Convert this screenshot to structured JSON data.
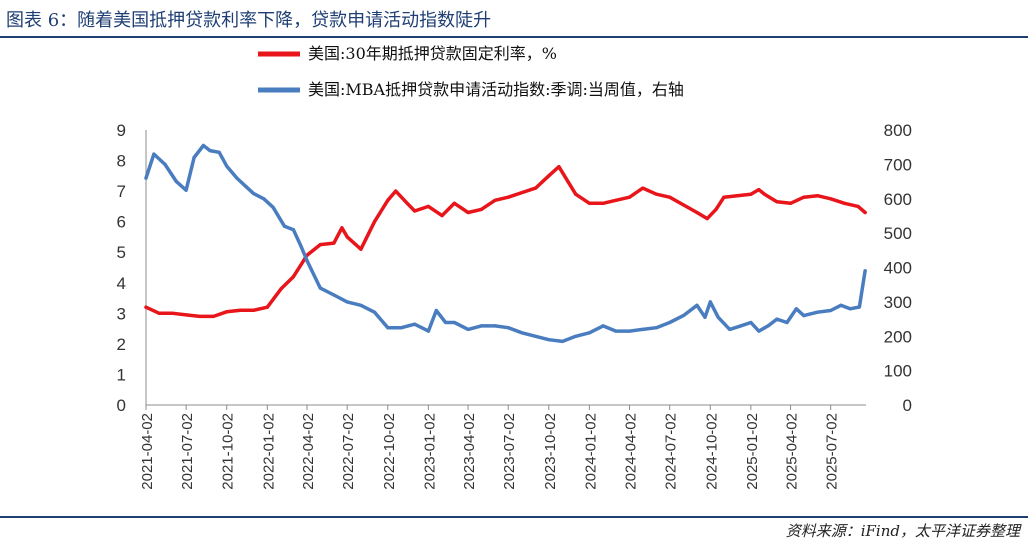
{
  "figure_title": "图表 6：随着美国抵押贷款利率下降，贷款申请活动指数陡升",
  "source_note": "资料来源：iFind，太平洋证券整理",
  "chart_data": {
    "type": "line",
    "title": "",
    "x_tick_labels": [
      "2021-04-02",
      "2021-07-02",
      "2021-10-02",
      "2022-01-02",
      "2022-04-02",
      "2022-07-02",
      "2022-10-02",
      "2023-01-02",
      "2023-04-02",
      "2023-07-02",
      "2023-10-02",
      "2024-01-02",
      "2024-04-02",
      "2024-07-02",
      "2024-10-02",
      "2025-01-02",
      "2025-04-02",
      "2025-07-02"
    ],
    "left_axis": {
      "ylim": [
        0,
        9
      ],
      "ticks": [
        "0",
        "1",
        "2",
        "3",
        "4",
        "5",
        "6",
        "7",
        "8",
        "9"
      ]
    },
    "right_axis": {
      "ylim": [
        0,
        800
      ],
      "ticks": [
        "0",
        "100",
        "200",
        "300",
        "400",
        "500",
        "600",
        "700",
        "800"
      ]
    },
    "grid": false,
    "legend_position": "top",
    "series": [
      {
        "name": "美国:30年期抵押贷款固定利率，%",
        "axis": "left",
        "color": "#e8151b",
        "x": [
          "2021-04-02",
          "2021-05-02",
          "2021-06-02",
          "2021-07-02",
          "2021-08-02",
          "2021-09-02",
          "2021-10-02",
          "2021-11-02",
          "2021-12-02",
          "2022-01-02",
          "2022-02-02",
          "2022-03-02",
          "2022-04-02",
          "2022-05-02",
          "2022-06-02",
          "2022-06-20",
          "2022-07-02",
          "2022-08-02",
          "2022-09-02",
          "2022-10-02",
          "2022-10-20",
          "2022-11-15",
          "2022-12-02",
          "2023-01-02",
          "2023-02-02",
          "2023-03-02",
          "2023-04-02",
          "2023-05-02",
          "2023-06-02",
          "2023-07-02",
          "2023-08-02",
          "2023-09-02",
          "2023-10-02",
          "2023-10-25",
          "2023-11-15",
          "2023-12-02",
          "2024-01-02",
          "2024-02-02",
          "2024-03-02",
          "2024-04-02",
          "2024-05-02",
          "2024-06-02",
          "2024-07-02",
          "2024-08-02",
          "2024-09-02",
          "2024-09-25",
          "2024-10-15",
          "2024-11-02",
          "2024-12-02",
          "2025-01-02",
          "2025-01-20",
          "2025-02-02",
          "2025-03-02",
          "2025-04-02",
          "2025-05-02",
          "2025-06-02",
          "2025-07-02",
          "2025-08-02",
          "2025-09-02",
          "2025-09-18"
        ],
        "values": [
          3.2,
          3.0,
          3.0,
          2.95,
          2.9,
          2.9,
          3.05,
          3.1,
          3.1,
          3.2,
          3.8,
          4.2,
          4.9,
          5.25,
          5.3,
          5.8,
          5.5,
          5.1,
          6.0,
          6.7,
          7.0,
          6.6,
          6.35,
          6.5,
          6.2,
          6.6,
          6.3,
          6.4,
          6.7,
          6.8,
          6.95,
          7.1,
          7.5,
          7.8,
          7.3,
          6.9,
          6.6,
          6.6,
          6.7,
          6.8,
          7.1,
          6.9,
          6.8,
          6.55,
          6.3,
          6.1,
          6.4,
          6.8,
          6.85,
          6.9,
          7.05,
          6.9,
          6.65,
          6.6,
          6.8,
          6.85,
          6.75,
          6.6,
          6.5,
          6.3
        ]
      },
      {
        "name": "美国:MBA抵押贷款申请活动指数:季调:当周值，右轴",
        "axis": "right",
        "color": "#4a7dbf",
        "x": [
          "2021-04-02",
          "2021-04-20",
          "2021-05-15",
          "2021-06-10",
          "2021-07-02",
          "2021-07-20",
          "2021-08-10",
          "2021-08-25",
          "2021-09-15",
          "2021-10-02",
          "2021-10-25",
          "2021-11-15",
          "2021-12-02",
          "2021-12-25",
          "2022-01-15",
          "2022-02-10",
          "2022-03-02",
          "2022-03-20",
          "2022-04-02",
          "2022-05-02",
          "2022-06-02",
          "2022-07-02",
          "2022-08-02",
          "2022-09-02",
          "2022-10-02",
          "2022-11-02",
          "2022-12-02",
          "2023-01-02",
          "2023-01-20",
          "2023-02-10",
          "2023-03-02",
          "2023-04-02",
          "2023-05-02",
          "2023-06-02",
          "2023-07-02",
          "2023-08-02",
          "2023-09-02",
          "2023-10-02",
          "2023-11-02",
          "2023-12-02",
          "2024-01-02",
          "2024-02-02",
          "2024-03-02",
          "2024-04-02",
          "2024-05-02",
          "2024-06-02",
          "2024-07-02",
          "2024-08-02",
          "2024-09-02",
          "2024-09-20",
          "2024-10-02",
          "2024-10-20",
          "2024-11-15",
          "2024-12-10",
          "2025-01-02",
          "2025-01-20",
          "2025-02-10",
          "2025-03-02",
          "2025-03-25",
          "2025-04-15",
          "2025-05-02",
          "2025-06-02",
          "2025-07-02",
          "2025-07-25",
          "2025-08-15",
          "2025-09-05",
          "2025-09-18"
        ],
        "values": [
          660,
          730,
          700,
          650,
          625,
          720,
          755,
          740,
          735,
          695,
          660,
          635,
          615,
          600,
          575,
          520,
          510,
          460,
          420,
          340,
          320,
          300,
          290,
          270,
          225,
          225,
          235,
          215,
          275,
          240,
          240,
          220,
          230,
          230,
          225,
          210,
          200,
          190,
          185,
          200,
          210,
          230,
          215,
          215,
          220,
          225,
          240,
          260,
          290,
          255,
          300,
          255,
          220,
          230,
          240,
          215,
          230,
          250,
          240,
          280,
          260,
          270,
          275,
          290,
          280,
          285,
          390
        ]
      }
    ]
  }
}
